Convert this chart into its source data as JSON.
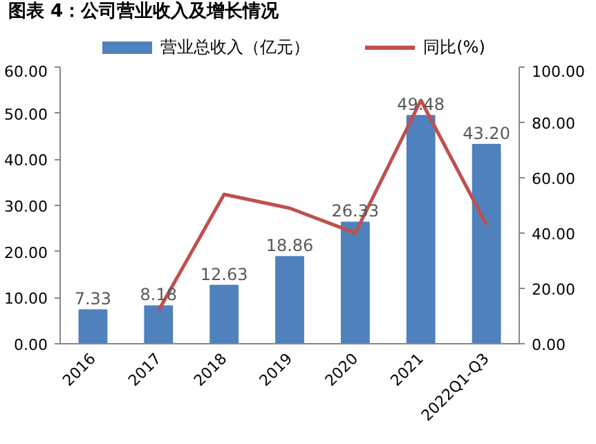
{
  "chart_data": {
    "type": "bar",
    "title": "图表 4：公司营业收入及增长情况",
    "categories": [
      "2016",
      "2017",
      "2018",
      "2019",
      "2020",
      "2021",
      "2022Q1-Q3"
    ],
    "series": [
      {
        "name": "营业总收入（亿元）",
        "color": "#4f81bd",
        "values": [
          7.33,
          8.18,
          12.63,
          18.86,
          26.33,
          49.48,
          43.2
        ],
        "value_labels": [
          "7.33",
          "8.18",
          "12.63",
          "18.86",
          "26.33",
          "49.48",
          "43.20"
        ]
      },
      {
        "name": "同比(%)",
        "type": "line",
        "axis": "y2",
        "color": "#c0504d",
        "values": [
          null,
          12,
          54,
          49,
          40,
          88,
          43
        ]
      }
    ],
    "ylim": [
      0,
      60
    ],
    "yticks": [
      {
        "value": 0,
        "label": "0.00"
      },
      {
        "value": 10,
        "label": "10.00"
      },
      {
        "value": 20,
        "label": "20.00"
      },
      {
        "value": 30,
        "label": "30.00"
      },
      {
        "value": 40,
        "label": "40.00"
      },
      {
        "value": 50,
        "label": "50.00"
      },
      {
        "value": 60,
        "label": "60.00"
      }
    ],
    "y2lim": [
      0,
      100
    ],
    "y2ticks": [
      {
        "value": 0,
        "label": "0.00"
      },
      {
        "value": 20,
        "label": "20.00"
      },
      {
        "value": 40,
        "label": "40.00"
      },
      {
        "value": 60,
        "label": "60.00"
      },
      {
        "value": 80,
        "label": "80.00"
      },
      {
        "value": 100,
        "label": "100.00"
      }
    ],
    "grid": false,
    "legend": "top",
    "marker": "none",
    "line_style": "solid"
  }
}
